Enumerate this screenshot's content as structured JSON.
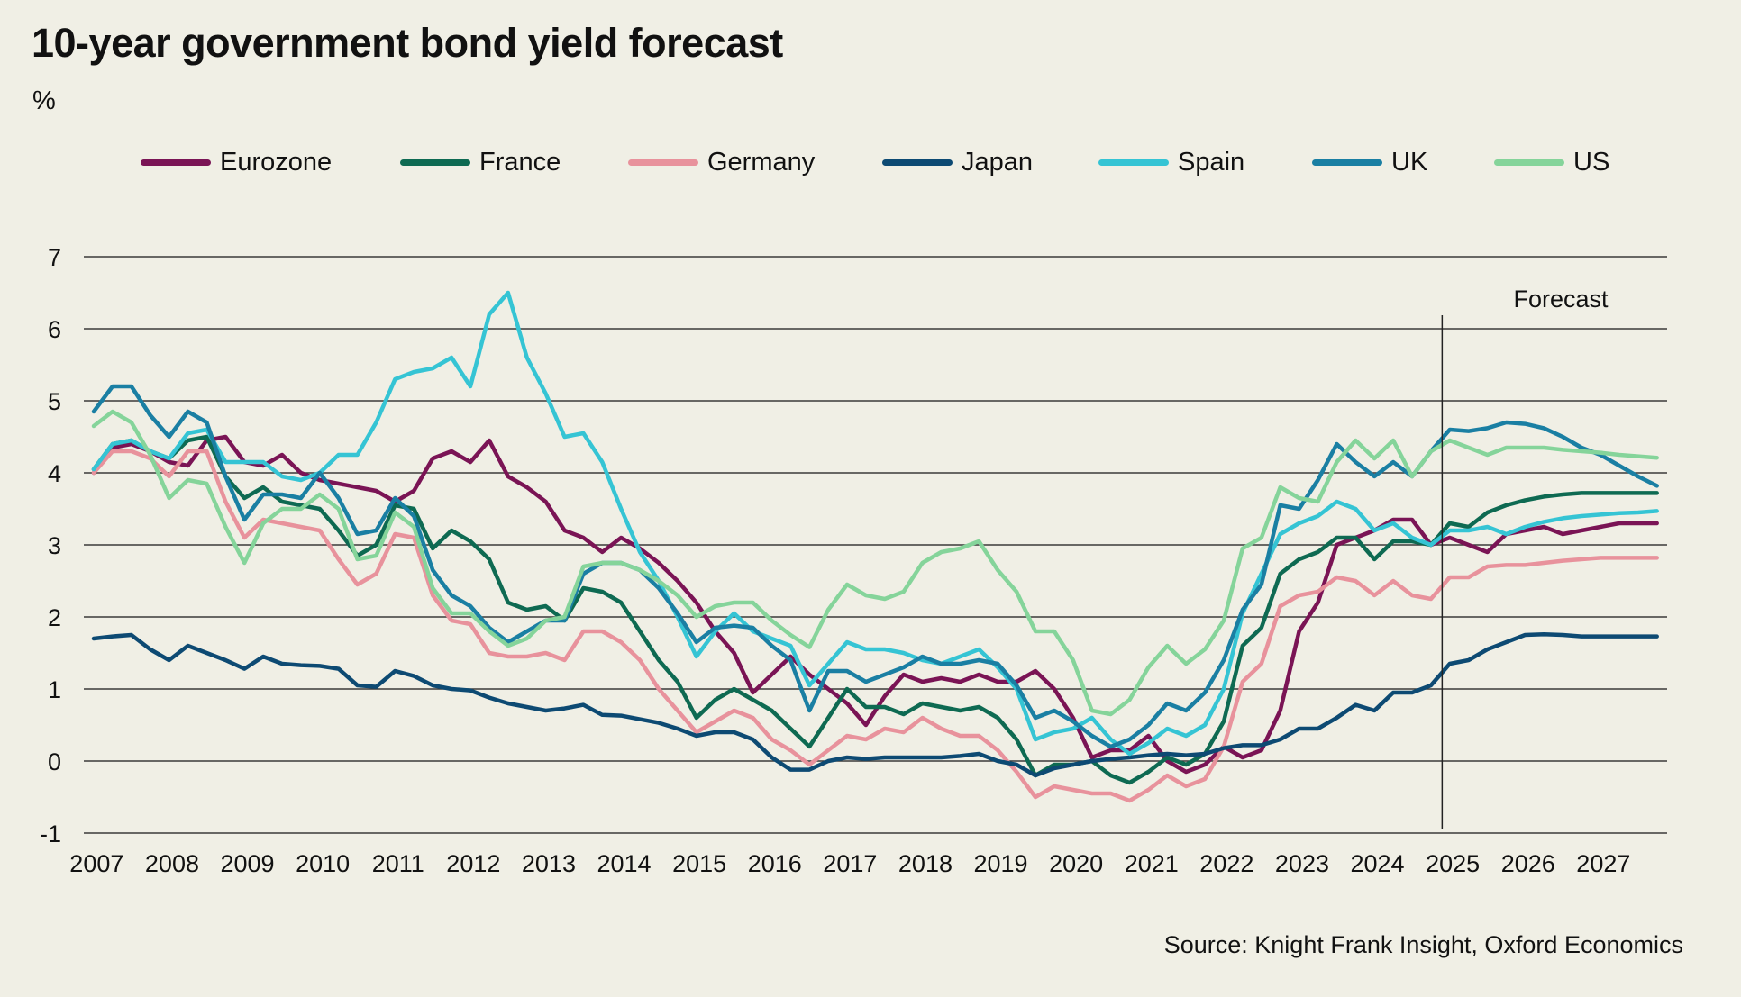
{
  "title": "10-year government bond yield forecast",
  "unit_label": "%",
  "source": "Source: Knight Frank Insight, Oxford Economics",
  "forecast_label": "Forecast",
  "chart_data": {
    "type": "line",
    "title": "10-year government bond yield forecast",
    "xlabel": "",
    "ylabel": "%",
    "ylim": [
      -1,
      7
    ],
    "yticks": [
      "-1",
      "0",
      "1",
      "2",
      "3",
      "4",
      "5",
      "6",
      "7"
    ],
    "xticks": [
      "2007",
      "2008",
      "2009",
      "2010",
      "2011",
      "2012",
      "2013",
      "2014",
      "2015",
      "2016",
      "2017",
      "2018",
      "2019",
      "2020",
      "2021",
      "2022",
      "2023",
      "2024",
      "2025",
      "2026",
      "2027"
    ],
    "x_start": "2007Q1",
    "x_end": "2027Q4",
    "frequency": "quarterly",
    "forecast_start_year": 2025,
    "grid": true,
    "legend_position": "top",
    "series": [
      {
        "name": "Eurozone",
        "color": "#7a1455",
        "values": [
          4.0,
          4.35,
          4.4,
          4.3,
          4.15,
          4.1,
          4.45,
          4.5,
          4.15,
          4.1,
          4.25,
          4.0,
          3.9,
          3.85,
          3.8,
          3.75,
          3.6,
          3.75,
          4.2,
          4.3,
          4.15,
          4.45,
          3.95,
          3.8,
          3.6,
          3.2,
          3.1,
          2.9,
          3.1,
          2.95,
          2.75,
          2.5,
          2.2,
          1.8,
          1.5,
          0.95,
          1.2,
          1.45,
          1.2,
          1.0,
          0.8,
          0.5,
          0.9,
          1.2,
          1.1,
          1.15,
          1.1,
          1.2,
          1.1,
          1.1,
          1.25,
          1.0,
          0.6,
          0.05,
          0.15,
          0.15,
          0.35,
          0.0,
          -0.15,
          -0.05,
          0.2,
          0.05,
          0.15,
          0.7,
          1.8,
          2.2,
          3.0,
          3.1,
          3.2,
          3.35,
          3.35,
          3.0,
          3.1,
          3.0,
          2.9,
          3.15,
          3.2,
          3.25,
          3.15,
          3.2,
          3.25,
          3.3,
          3.3,
          3.3
        ]
      },
      {
        "name": "France",
        "color": "#0e6a52",
        "values": [
          4.05,
          4.4,
          4.45,
          4.3,
          4.2,
          4.45,
          4.5,
          3.95,
          3.65,
          3.8,
          3.6,
          3.55,
          3.5,
          3.2,
          2.85,
          3.0,
          3.55,
          3.5,
          2.95,
          3.2,
          3.05,
          2.8,
          2.2,
          2.1,
          2.15,
          1.95,
          2.4,
          2.35,
          2.2,
          1.8,
          1.4,
          1.1,
          0.6,
          0.85,
          1.0,
          0.85,
          0.7,
          0.45,
          0.2,
          0.6,
          1.0,
          0.75,
          0.75,
          0.65,
          0.8,
          0.75,
          0.7,
          0.75,
          0.6,
          0.3,
          -0.2,
          -0.05,
          -0.05,
          0.0,
          -0.2,
          -0.3,
          -0.15,
          0.05,
          -0.05,
          0.1,
          0.55,
          1.6,
          1.85,
          2.6,
          2.8,
          2.9,
          3.1,
          3.1,
          2.8,
          3.05,
          3.05,
          3.0,
          3.3,
          3.25,
          3.45,
          3.55,
          3.62,
          3.67,
          3.7,
          3.72,
          3.72,
          3.72,
          3.72,
          3.72
        ]
      },
      {
        "name": "Germany",
        "color": "#e8929c",
        "values": [
          4.0,
          4.3,
          4.3,
          4.2,
          3.95,
          4.3,
          4.3,
          3.6,
          3.1,
          3.35,
          3.3,
          3.25,
          3.2,
          2.8,
          2.45,
          2.6,
          3.15,
          3.1,
          2.3,
          1.95,
          1.9,
          1.5,
          1.45,
          1.45,
          1.5,
          1.4,
          1.8,
          1.8,
          1.65,
          1.4,
          1.0,
          0.7,
          0.4,
          0.55,
          0.7,
          0.6,
          0.3,
          0.15,
          -0.05,
          0.15,
          0.35,
          0.3,
          0.45,
          0.4,
          0.6,
          0.45,
          0.35,
          0.35,
          0.15,
          -0.15,
          -0.5,
          -0.35,
          -0.4,
          -0.45,
          -0.45,
          -0.55,
          -0.4,
          -0.2,
          -0.35,
          -0.25,
          0.2,
          1.1,
          1.35,
          2.15,
          2.3,
          2.35,
          2.55,
          2.5,
          2.3,
          2.5,
          2.3,
          2.25,
          2.55,
          2.55,
          2.7,
          2.72,
          2.72,
          2.75,
          2.78,
          2.8,
          2.82,
          2.82,
          2.82,
          2.82
        ]
      },
      {
        "name": "Japan",
        "color": "#0d4a73",
        "values": [
          1.7,
          1.73,
          1.75,
          1.55,
          1.4,
          1.6,
          1.5,
          1.4,
          1.28,
          1.45,
          1.35,
          1.33,
          1.32,
          1.28,
          1.05,
          1.03,
          1.25,
          1.18,
          1.05,
          1.0,
          0.98,
          0.88,
          0.8,
          0.75,
          0.7,
          0.73,
          0.78,
          0.64,
          0.63,
          0.58,
          0.53,
          0.45,
          0.35,
          0.4,
          0.4,
          0.3,
          0.05,
          -0.12,
          -0.12,
          0.0,
          0.05,
          0.03,
          0.05,
          0.05,
          0.05,
          0.05,
          0.07,
          0.1,
          0.0,
          -0.05,
          -0.2,
          -0.1,
          -0.05,
          0.0,
          0.03,
          0.05,
          0.08,
          0.1,
          0.08,
          0.1,
          0.18,
          0.22,
          0.22,
          0.3,
          0.45,
          0.45,
          0.6,
          0.78,
          0.7,
          0.95,
          0.95,
          1.05,
          1.35,
          1.4,
          1.55,
          1.65,
          1.75,
          1.76,
          1.75,
          1.73,
          1.73,
          1.73,
          1.73,
          1.73
        ]
      },
      {
        "name": "Spain",
        "color": "#35c4d4",
        "values": [
          4.05,
          4.4,
          4.45,
          4.3,
          4.2,
          4.55,
          4.6,
          4.15,
          4.15,
          4.15,
          3.95,
          3.9,
          4.0,
          4.25,
          4.25,
          4.7,
          5.3,
          5.4,
          5.45,
          5.6,
          5.2,
          6.2,
          6.5,
          5.6,
          5.1,
          4.5,
          4.55,
          4.15,
          3.5,
          2.9,
          2.5,
          2.0,
          1.45,
          1.8,
          2.05,
          1.8,
          1.7,
          1.6,
          1.05,
          1.35,
          1.65,
          1.55,
          1.55,
          1.5,
          1.4,
          1.35,
          1.45,
          1.55,
          1.3,
          1.0,
          0.3,
          0.4,
          0.45,
          0.6,
          0.3,
          0.1,
          0.25,
          0.45,
          0.35,
          0.5,
          1.0,
          2.05,
          2.6,
          3.15,
          3.3,
          3.4,
          3.6,
          3.5,
          3.2,
          3.3,
          3.1,
          3.0,
          3.2,
          3.2,
          3.25,
          3.15,
          3.25,
          3.32,
          3.37,
          3.4,
          3.42,
          3.44,
          3.45,
          3.47
        ]
      },
      {
        "name": "UK",
        "color": "#1a7fa3",
        "values": [
          4.85,
          5.2,
          5.2,
          4.8,
          4.5,
          4.85,
          4.7,
          3.95,
          3.35,
          3.7,
          3.7,
          3.65,
          4.0,
          3.65,
          3.15,
          3.2,
          3.65,
          3.4,
          2.65,
          2.3,
          2.15,
          1.85,
          1.65,
          1.8,
          1.95,
          1.95,
          2.6,
          2.75,
          2.75,
          2.65,
          2.4,
          2.05,
          1.65,
          1.85,
          1.88,
          1.85,
          1.6,
          1.4,
          0.7,
          1.25,
          1.25,
          1.1,
          1.2,
          1.3,
          1.45,
          1.35,
          1.35,
          1.4,
          1.35,
          1.05,
          0.6,
          0.7,
          0.55,
          0.35,
          0.2,
          0.3,
          0.5,
          0.8,
          0.7,
          0.95,
          1.4,
          2.1,
          2.45,
          3.55,
          3.5,
          3.9,
          4.4,
          4.15,
          3.95,
          4.15,
          3.95,
          4.3,
          4.6,
          4.58,
          4.62,
          4.7,
          4.68,
          4.62,
          4.5,
          4.35,
          4.25,
          4.1,
          3.95,
          3.82
        ]
      },
      {
        "name": "US",
        "color": "#85d49a",
        "values": [
          4.65,
          4.85,
          4.7,
          4.25,
          3.65,
          3.9,
          3.85,
          3.25,
          2.75,
          3.3,
          3.5,
          3.5,
          3.7,
          3.5,
          2.8,
          2.85,
          3.45,
          3.25,
          2.4,
          2.05,
          2.05,
          1.8,
          1.6,
          1.7,
          1.95,
          2.0,
          2.7,
          2.75,
          2.75,
          2.65,
          2.5,
          2.3,
          2.0,
          2.15,
          2.2,
          2.2,
          1.95,
          1.75,
          1.58,
          2.1,
          2.45,
          2.3,
          2.25,
          2.35,
          2.75,
          2.9,
          2.95,
          3.05,
          2.65,
          2.35,
          1.8,
          1.8,
          1.4,
          0.7,
          0.65,
          0.85,
          1.3,
          1.6,
          1.35,
          1.55,
          1.95,
          2.95,
          3.1,
          3.8,
          3.65,
          3.6,
          4.15,
          4.45,
          4.2,
          4.45,
          3.95,
          4.3,
          4.45,
          4.35,
          4.25,
          4.35,
          4.35,
          4.35,
          4.32,
          4.3,
          4.28,
          4.25,
          4.23,
          4.21
        ]
      }
    ]
  }
}
